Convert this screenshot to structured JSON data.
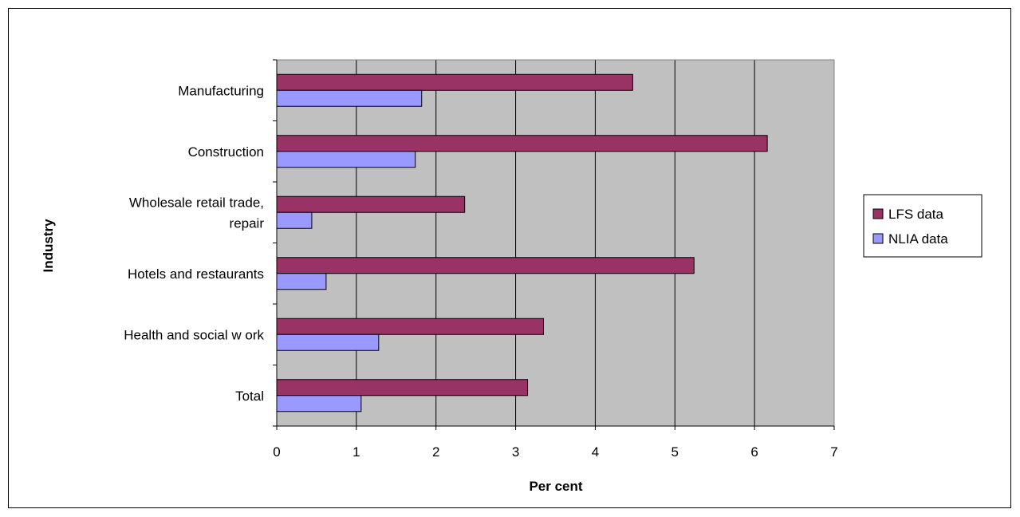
{
  "chart_data": {
    "type": "bar",
    "orientation": "horizontal",
    "categories": [
      [
        "Manufacturing"
      ],
      [
        "Construction"
      ],
      [
        "Wholesale retail trade,",
        "repair"
      ],
      [
        "Hotels and restaurants"
      ],
      [
        "Health and social w ork"
      ],
      [
        "Total"
      ]
    ],
    "series": [
      {
        "name": "LFS data",
        "values": [
          4.47,
          6.16,
          2.36,
          5.24,
          3.35,
          3.15
        ]
      },
      {
        "name": "NLIA data",
        "values": [
          1.82,
          1.74,
          0.44,
          0.62,
          1.28,
          1.06
        ]
      }
    ],
    "xlabel": "Per cent",
    "ylabel": "Industry",
    "xlim": [
      0,
      7
    ],
    "xticks": [
      "0",
      "1",
      "2",
      "3",
      "4",
      "5",
      "6",
      "7"
    ],
    "grid": "vertical",
    "legend_position": "right",
    "colors": {
      "plot_background": "#c0c0c0",
      "series": [
        "#993366",
        "#9999ff"
      ],
      "gridline": "#000000",
      "bar_border": "#000000"
    }
  }
}
